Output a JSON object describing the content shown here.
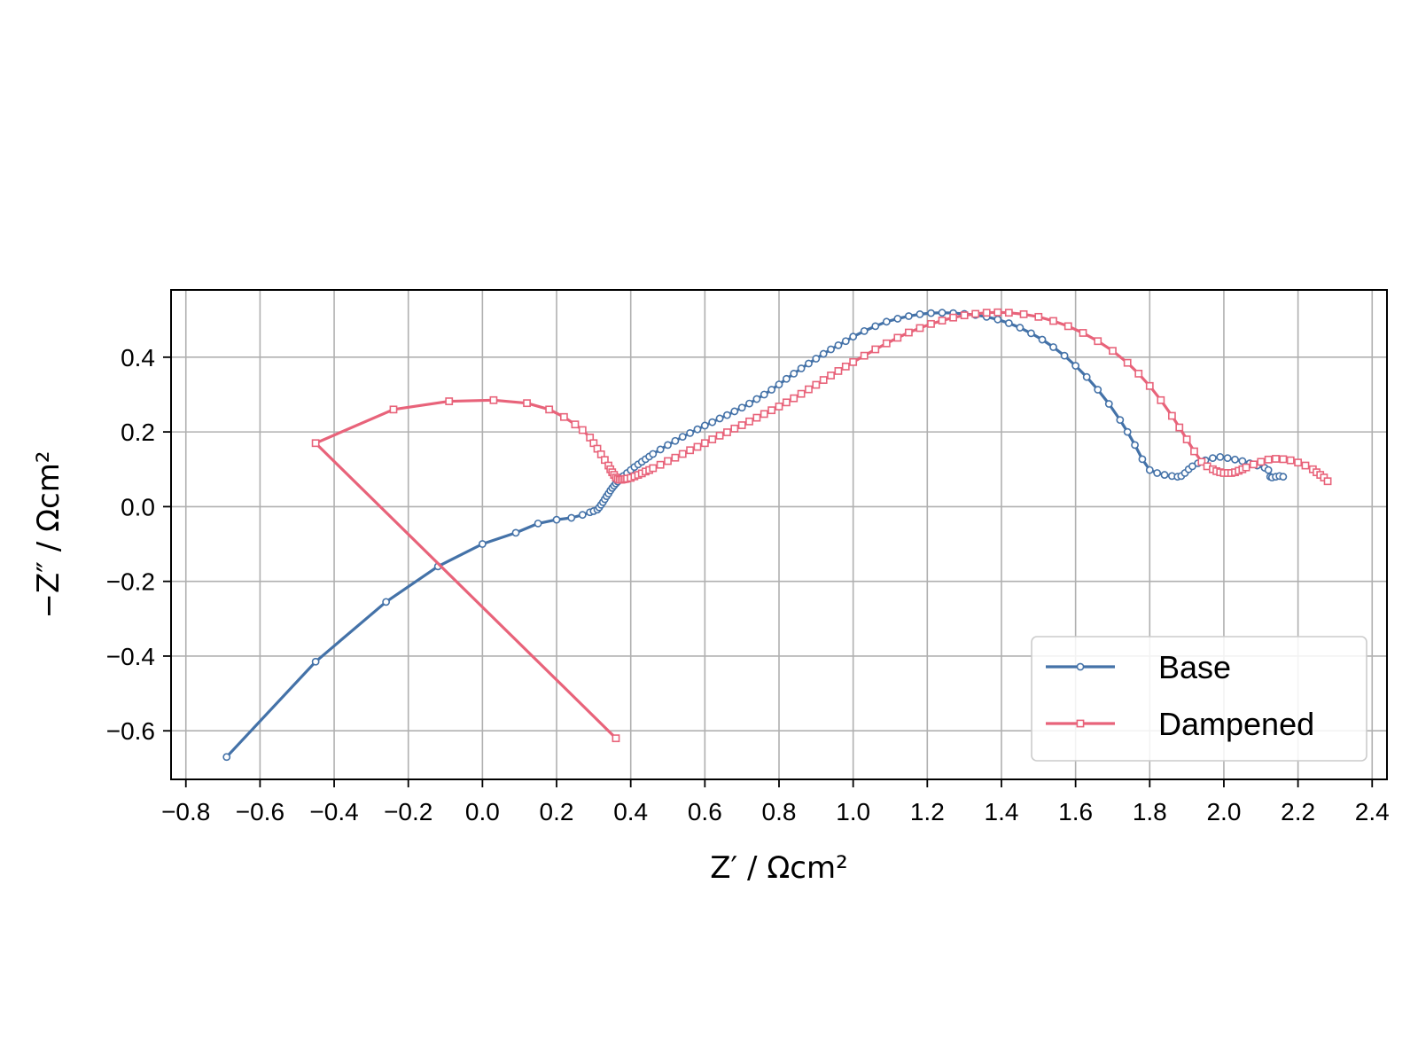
{
  "chart_data": {
    "type": "line",
    "xlabel": "Z′ / Ωcm²",
    "ylabel": "−Z″ / Ωcm²",
    "xlim": [
      -0.84,
      2.44
    ],
    "ylim": [
      -0.73,
      0.58
    ],
    "grid": true,
    "legend_position": "lower-right",
    "x_ticks": [
      -0.8,
      -0.6,
      -0.4,
      -0.2,
      0.0,
      0.2,
      0.4,
      0.6,
      0.8,
      1.0,
      1.2,
      1.4,
      1.6,
      1.8,
      2.0,
      2.2,
      2.4
    ],
    "x_tick_labels": [
      "−0.8",
      "−0.6",
      "−0.4",
      "−0.2",
      "0.0",
      "0.2",
      "0.4",
      "0.6",
      "0.8",
      "1.0",
      "1.2",
      "1.4",
      "1.6",
      "1.8",
      "2.0",
      "2.2",
      "2.4"
    ],
    "y_ticks": [
      -0.6,
      -0.4,
      -0.2,
      0.0,
      0.2,
      0.4
    ],
    "y_tick_labels": [
      "−0.6",
      "−0.4",
      "−0.2",
      "0.0",
      "0.2",
      "0.4"
    ],
    "series": [
      {
        "name": "Base",
        "color": "#4472a8",
        "marker": "circle",
        "x": [
          -0.69,
          -0.45,
          -0.26,
          -0.12,
          0.0,
          0.09,
          0.15,
          0.2,
          0.24,
          0.27,
          0.29,
          0.3,
          0.31,
          0.315,
          0.32,
          0.325,
          0.33,
          0.335,
          0.34,
          0.345,
          0.35,
          0.355,
          0.36,
          0.365,
          0.37,
          0.375,
          0.38,
          0.39,
          0.4,
          0.41,
          0.42,
          0.43,
          0.44,
          0.45,
          0.46,
          0.48,
          0.5,
          0.52,
          0.54,
          0.56,
          0.58,
          0.6,
          0.62,
          0.64,
          0.66,
          0.68,
          0.7,
          0.72,
          0.74,
          0.76,
          0.78,
          0.8,
          0.82,
          0.84,
          0.86,
          0.88,
          0.9,
          0.92,
          0.94,
          0.96,
          0.98,
          1.0,
          1.03,
          1.06,
          1.09,
          1.12,
          1.15,
          1.18,
          1.21,
          1.24,
          1.27,
          1.3,
          1.33,
          1.36,
          1.39,
          1.42,
          1.45,
          1.48,
          1.51,
          1.54,
          1.57,
          1.6,
          1.63,
          1.66,
          1.69,
          1.72,
          1.74,
          1.76,
          1.78,
          1.8,
          1.82,
          1.84,
          1.86,
          1.875,
          1.885,
          1.895,
          1.905,
          1.915,
          1.93,
          1.95,
          1.97,
          1.99,
          2.01,
          2.03,
          2.05,
          2.07,
          2.09,
          2.11,
          2.12,
          2.125,
          2.13,
          2.14,
          2.15,
          2.16
        ],
        "y": [
          -0.67,
          -0.415,
          -0.255,
          -0.16,
          -0.1,
          -0.07,
          -0.045,
          -0.035,
          -0.03,
          -0.022,
          -0.015,
          -0.012,
          -0.008,
          -0.002,
          0.005,
          0.012,
          0.02,
          0.028,
          0.035,
          0.043,
          0.05,
          0.056,
          0.062,
          0.067,
          0.072,
          0.077,
          0.082,
          0.09,
          0.098,
          0.106,
          0.113,
          0.12,
          0.127,
          0.134,
          0.141,
          0.153,
          0.165,
          0.176,
          0.187,
          0.197,
          0.207,
          0.217,
          0.226,
          0.236,
          0.245,
          0.255,
          0.265,
          0.276,
          0.288,
          0.3,
          0.313,
          0.327,
          0.342,
          0.356,
          0.37,
          0.383,
          0.396,
          0.409,
          0.421,
          0.432,
          0.443,
          0.455,
          0.47,
          0.483,
          0.495,
          0.503,
          0.51,
          0.515,
          0.518,
          0.519,
          0.518,
          0.516,
          0.513,
          0.508,
          0.501,
          0.491,
          0.479,
          0.464,
          0.447,
          0.427,
          0.404,
          0.377,
          0.347,
          0.313,
          0.275,
          0.232,
          0.2,
          0.165,
          0.127,
          0.098,
          0.09,
          0.085,
          0.082,
          0.08,
          0.082,
          0.09,
          0.1,
          0.108,
          0.116,
          0.124,
          0.13,
          0.133,
          0.13,
          0.126,
          0.122,
          0.116,
          0.11,
          0.104,
          0.098,
          0.08,
          0.078,
          0.08,
          0.082,
          0.08
        ]
      },
      {
        "name": "Dampened",
        "color": "#e8637a",
        "marker": "square",
        "x": [
          0.36,
          -0.45,
          -0.24,
          -0.09,
          0.03,
          0.12,
          0.18,
          0.22,
          0.25,
          0.27,
          0.29,
          0.3,
          0.31,
          0.32,
          0.33,
          0.34,
          0.345,
          0.35,
          0.355,
          0.36,
          0.365,
          0.37,
          0.375,
          0.38,
          0.385,
          0.39,
          0.4,
          0.41,
          0.42,
          0.43,
          0.44,
          0.45,
          0.46,
          0.48,
          0.5,
          0.52,
          0.54,
          0.56,
          0.58,
          0.6,
          0.62,
          0.64,
          0.66,
          0.68,
          0.7,
          0.72,
          0.74,
          0.76,
          0.78,
          0.8,
          0.82,
          0.84,
          0.86,
          0.88,
          0.9,
          0.92,
          0.94,
          0.96,
          0.98,
          1.0,
          1.03,
          1.06,
          1.09,
          1.12,
          1.15,
          1.18,
          1.21,
          1.24,
          1.27,
          1.3,
          1.33,
          1.36,
          1.39,
          1.42,
          1.46,
          1.5,
          1.54,
          1.58,
          1.62,
          1.66,
          1.7,
          1.74,
          1.77,
          1.8,
          1.83,
          1.86,
          1.88,
          1.9,
          1.92,
          1.94,
          1.955,
          1.97,
          1.98,
          1.99,
          2.0,
          2.01,
          2.02,
          2.03,
          2.04,
          2.05,
          2.06,
          2.08,
          2.1,
          2.12,
          2.14,
          2.16,
          2.18,
          2.2,
          2.22,
          2.24,
          2.25,
          2.26,
          2.27,
          2.28
        ],
        "y": [
          -0.62,
          0.17,
          0.26,
          0.282,
          0.285,
          0.277,
          0.26,
          0.24,
          0.22,
          0.205,
          0.185,
          0.17,
          0.155,
          0.14,
          0.125,
          0.11,
          0.1,
          0.092,
          0.085,
          0.078,
          0.074,
          0.072,
          0.072,
          0.073,
          0.074,
          0.075,
          0.077,
          0.081,
          0.085,
          0.089,
          0.094,
          0.098,
          0.103,
          0.112,
          0.122,
          0.131,
          0.141,
          0.151,
          0.16,
          0.17,
          0.18,
          0.19,
          0.199,
          0.209,
          0.218,
          0.228,
          0.238,
          0.248,
          0.258,
          0.268,
          0.279,
          0.29,
          0.302,
          0.314,
          0.326,
          0.339,
          0.351,
          0.363,
          0.375,
          0.387,
          0.404,
          0.421,
          0.437,
          0.452,
          0.466,
          0.478,
          0.489,
          0.498,
          0.506,
          0.512,
          0.516,
          0.519,
          0.52,
          0.519,
          0.515,
          0.508,
          0.497,
          0.483,
          0.465,
          0.443,
          0.417,
          0.385,
          0.356,
          0.323,
          0.285,
          0.243,
          0.212,
          0.18,
          0.148,
          0.12,
          0.108,
          0.1,
          0.095,
          0.092,
          0.09,
          0.09,
          0.09,
          0.092,
          0.096,
          0.1,
          0.105,
          0.113,
          0.12,
          0.126,
          0.128,
          0.127,
          0.124,
          0.118,
          0.11,
          0.1,
          0.092,
          0.085,
          0.078,
          0.068
        ]
      }
    ]
  }
}
